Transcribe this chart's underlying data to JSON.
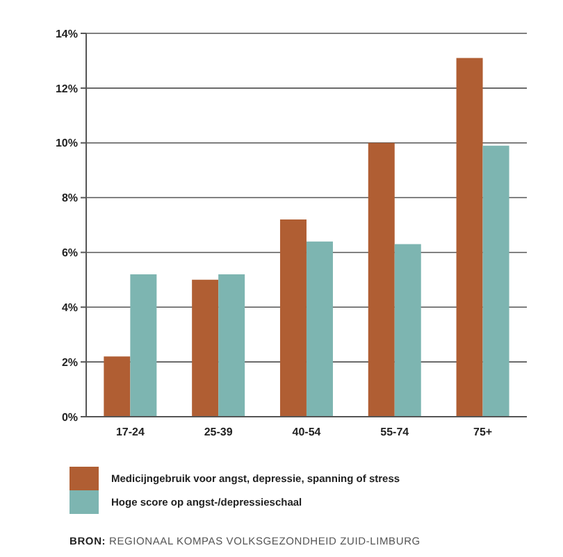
{
  "chart_data": {
    "type": "bar",
    "categories": [
      "17-24",
      "25-39",
      "40-54",
      "55-74",
      "75+"
    ],
    "series": [
      {
        "name": "Medicijngebruik voor angst, depressie, spanning of stress",
        "color": "#b05e33",
        "values": [
          2.2,
          5.0,
          7.2,
          10.0,
          13.1
        ]
      },
      {
        "name": "Hoge score op angst-/depressieschaal",
        "color": "#7db5b1",
        "values": [
          5.2,
          5.2,
          6.4,
          6.3,
          9.9
        ]
      }
    ],
    "ylim": [
      0,
      14
    ],
    "yticks": [
      {
        "value": 0,
        "label": "0%"
      },
      {
        "value": 2,
        "label": "2%"
      },
      {
        "value": 4,
        "label": "4%"
      },
      {
        "value": 6,
        "label": "6%"
      },
      {
        "value": 8,
        "label": "8%"
      },
      {
        "value": 10,
        "label": "10%"
      },
      {
        "value": 12,
        "label": "12%"
      },
      {
        "value": 14,
        "label": "14%"
      }
    ],
    "grid": "y",
    "legend": "bottom",
    "annotations": [
      "BRON: REGIONAAL KOMPAS VOLKSGEZONDHEID ZUID-LIMBURG"
    ]
  }
}
